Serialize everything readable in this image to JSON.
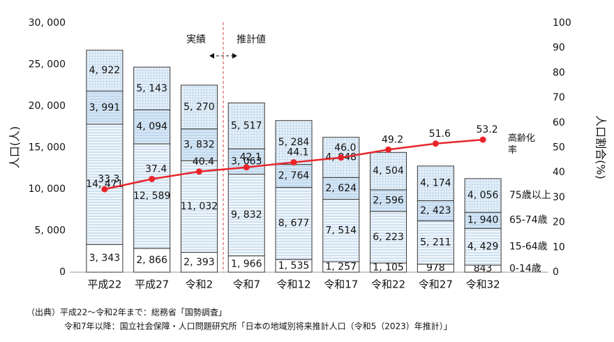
{
  "chart_data": {
    "type": "stacked-bar-line",
    "categories": [
      "平成22",
      "平成27",
      "令和2",
      "令和7",
      "令和12",
      "令和17",
      "令和22",
      "令和27",
      "令和32"
    ],
    "y_label": "人口(人)",
    "y2_label": "人口割合(%)",
    "ylim": [
      0,
      30000
    ],
    "yticks": [
      0,
      {
        "value": 5000,
        "label": "5, 000"
      },
      {
        "value": 10000,
        "label": "10, 000"
      },
      {
        "value": 15000,
        "label": "15, 000"
      },
      {
        "value": 20000,
        "label": "20, 000"
      },
      {
        "value": 25000,
        "label": "25, 000"
      },
      {
        "value": 30000,
        "label": "30, 000"
      }
    ],
    "y2lim": [
      0,
      100
    ],
    "y2ticks": [
      0,
      10,
      20,
      30,
      40,
      50,
      60,
      70,
      80,
      90,
      100
    ],
    "series": [
      {
        "name": "0-14歳",
        "color": "#ffffff",
        "values": [
          3343,
          2866,
          2393,
          1966,
          1535,
          1257,
          1105,
          978,
          843
        ],
        "value_labels": [
          "3, 343",
          "2, 866",
          "2, 393",
          "1, 966",
          "1, 535",
          "1, 257",
          "1, 105",
          "978",
          "843"
        ]
      },
      {
        "name": "15-64歳",
        "color": "#f2f7fc",
        "values": [
          14471,
          12589,
          11032,
          9832,
          8677,
          7514,
          6223,
          5211,
          4429
        ],
        "value_labels": [
          "14, 471",
          "12, 589",
          "11, 032",
          "9, 832",
          "8, 677",
          "7, 514",
          "6, 223",
          "5, 211",
          "4, 429"
        ]
      },
      {
        "name": "65-74歳",
        "color": "#d7e7f5",
        "values": [
          3991,
          4094,
          3832,
          3063,
          2764,
          2624,
          2596,
          2423,
          1940
        ],
        "value_labels": [
          "3, 991",
          "4, 094",
          "3, 832",
          "3, 063",
          "2, 764",
          "2, 624",
          "2, 596",
          "2, 423",
          "1, 940"
        ]
      },
      {
        "name": "75歳以上",
        "color": "#e6f0f8",
        "values": [
          4922,
          5143,
          5270,
          5517,
          5284,
          4848,
          4504,
          4174,
          4056
        ],
        "value_labels": [
          "4, 922",
          "5, 143",
          "5, 270",
          "5, 517",
          "5, 284",
          "4, 848",
          "4, 504",
          "4, 174",
          "4, 056"
        ]
      },
      {
        "name": "高齢化率",
        "color": "#e8242a",
        "axis": "y2",
        "values": [
          33.3,
          37.4,
          40.4,
          42.1,
          44.1,
          46.0,
          49.2,
          51.6,
          53.2
        ],
        "value_labels": [
          "33.3",
          "37.4",
          "40.4",
          "42.1",
          "44.1",
          "46.0",
          "49.2",
          "51.6",
          "53.2"
        ]
      }
    ],
    "annotations": [
      "実績",
      "推計値"
    ],
    "source": [
      "（出典）平成22～令和2年まで：総務省「国勢調査」",
      "令和7年以降：国立社会保障・人口問題研究所「日本の地域別将来推計人口（令和5（2023）年推計）」"
    ]
  }
}
